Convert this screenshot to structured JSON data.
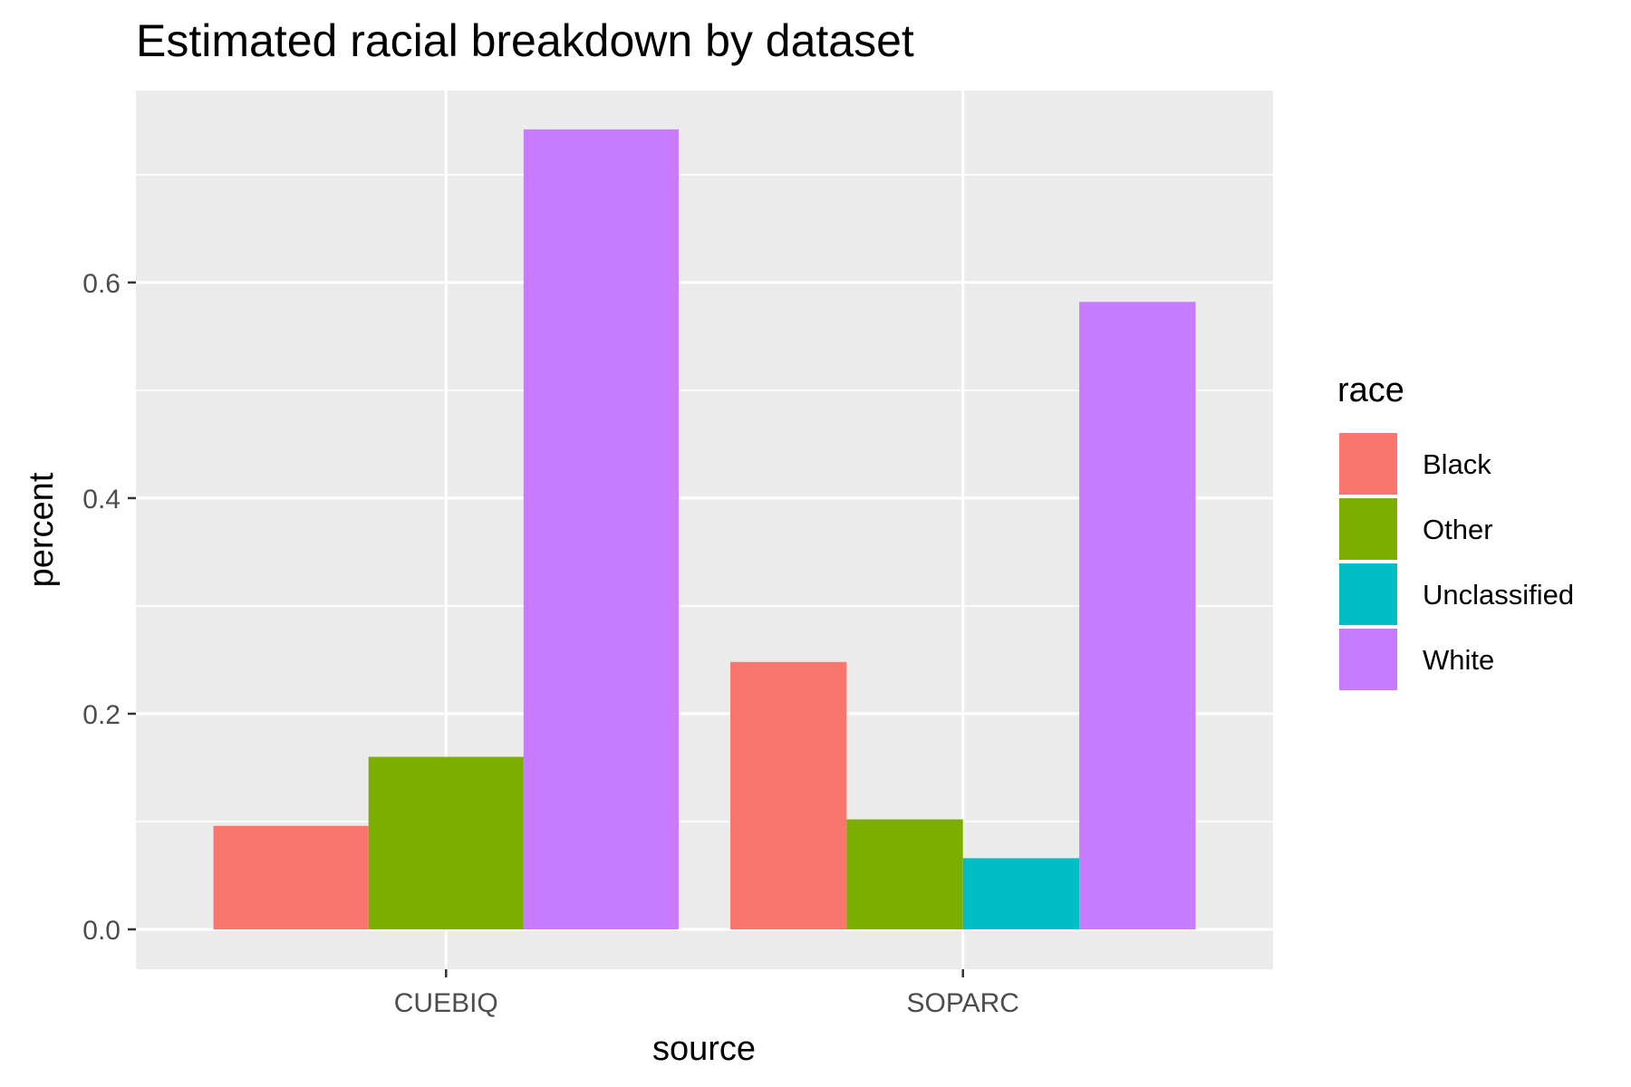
{
  "chart_data": {
    "type": "bar",
    "title": "Estimated racial breakdown by dataset",
    "xlabel": "source",
    "ylabel": "percent",
    "categories": [
      "CUEBIQ",
      "SOPARC"
    ],
    "series": [
      {
        "name": "Black",
        "values": [
          0.096,
          0.248
        ]
      },
      {
        "name": "Other",
        "values": [
          0.16,
          0.102
        ]
      },
      {
        "name": "Unclassified",
        "values": [
          null,
          0.066
        ]
      },
      {
        "name": "White",
        "values": [
          0.742,
          0.582
        ]
      }
    ],
    "ylim": [
      -0.037,
      0.778
    ],
    "yticks": [
      0.0,
      0.2,
      0.4,
      0.6
    ],
    "ytick_labels": [
      "0.0",
      "0.2",
      "0.4",
      "0.6"
    ],
    "grid": true,
    "legend": {
      "title": "race",
      "position": "right"
    },
    "colors": {
      "Black": "#f8766d",
      "Other": "#7cae00",
      "Unclassified": "#00bfc4",
      "White": "#c77cff",
      "panel_background": "#ebebeb",
      "grid": "#ffffff"
    }
  }
}
